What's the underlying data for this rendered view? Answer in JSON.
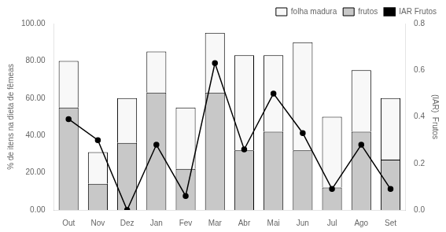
{
  "chart_data": {
    "type": "bar",
    "stacked": true,
    "grid": false,
    "legend": "upper right",
    "categories": [
      "Out",
      "Nov",
      "Dez",
      "Jan",
      "Fev",
      "Mar",
      "Abr",
      "Mai",
      "Jun",
      "Jul",
      "Ago",
      "Set"
    ],
    "ylabel": "% de itens na dieta de fêmeas",
    "y2label": "(IAR)  Frutos",
    "ylim": [
      0,
      100
    ],
    "yticks": [
      {
        "value": 0,
        "label": "0.00"
      },
      {
        "value": 20,
        "label": "20.00"
      },
      {
        "value": 40,
        "label": "40.00"
      },
      {
        "value": 60,
        "label": "60.00"
      },
      {
        "value": 80,
        "label": "80.00"
      },
      {
        "value": 100,
        "label": "100.00"
      }
    ],
    "y2lim": [
      0,
      0.8
    ],
    "y2ticks": [
      {
        "value": 0,
        "label": "0.0"
      },
      0.2,
      0.4,
      0.6,
      0.8
    ],
    "series": [
      {
        "name": "frutos",
        "color": "#c8c8c8",
        "values": [
          55,
          14,
          36,
          63,
          22,
          63,
          32,
          42,
          32,
          12,
          42,
          27
        ]
      },
      {
        "name": "folha madura",
        "color": "#f8f8f8",
        "values": [
          25,
          17,
          24,
          22,
          33,
          32,
          51,
          41,
          58,
          38,
          33,
          33
        ]
      },
      {
        "name": "IAR Frutos",
        "type": "line",
        "axis": "y2",
        "color": "black",
        "marker": "circle",
        "values": [
          0.39,
          0.3,
          0.0,
          0.28,
          0.06,
          0.63,
          0.26,
          0.5,
          0.33,
          0.09,
          0.28,
          0.09
        ]
      }
    ]
  }
}
